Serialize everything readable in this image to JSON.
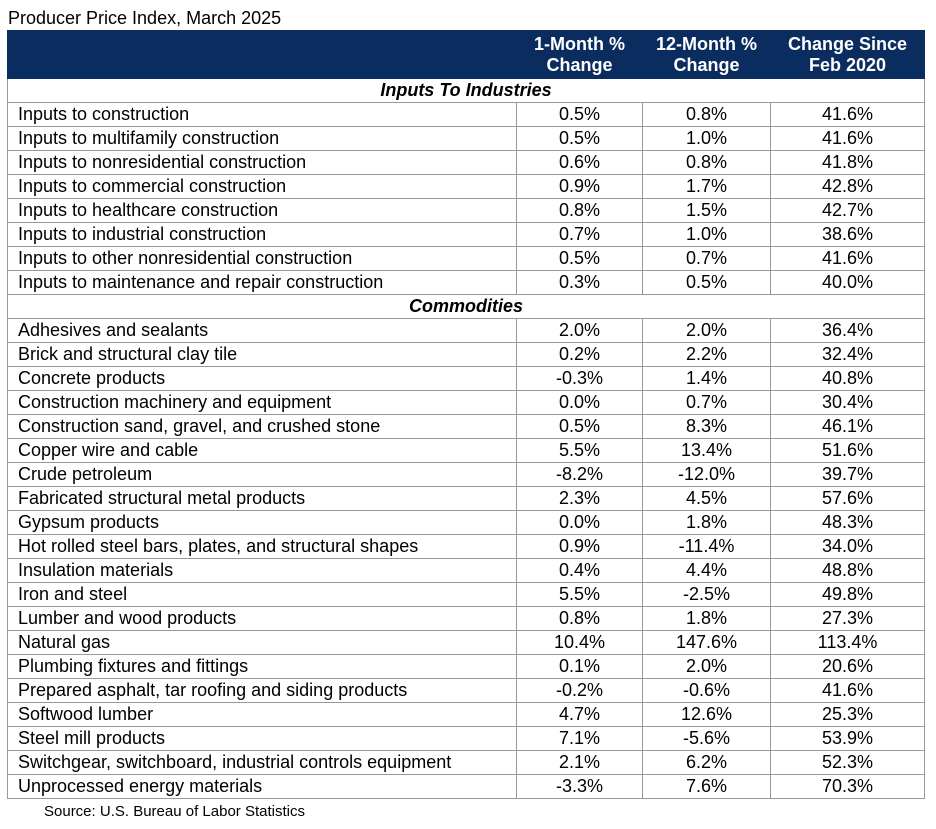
{
  "title": "Producer Price Index, March 2025",
  "columns": [
    "",
    "1-Month % Change",
    "12-Month % Change",
    "Change Since Feb 2020"
  ],
  "sections": [
    {
      "title": "Inputs To Industries",
      "rows": [
        [
          "Inputs to construction",
          "0.5%",
          "0.8%",
          "41.6%"
        ],
        [
          "Inputs to multifamily construction",
          "0.5%",
          "1.0%",
          "41.6%"
        ],
        [
          "Inputs to nonresidential construction",
          "0.6%",
          "0.8%",
          "41.8%"
        ],
        [
          "Inputs to commercial construction",
          "0.9%",
          "1.7%",
          "42.8%"
        ],
        [
          "Inputs to healthcare construction",
          "0.8%",
          "1.5%",
          "42.7%"
        ],
        [
          "Inputs to industrial construction",
          "0.7%",
          "1.0%",
          "38.6%"
        ],
        [
          "Inputs to other nonresidential construction",
          "0.5%",
          "0.7%",
          "41.6%"
        ],
        [
          "Inputs to maintenance and repair construction",
          "0.3%",
          "0.5%",
          "40.0%"
        ]
      ]
    },
    {
      "title": "Commodities",
      "rows": [
        [
          "Adhesives and sealants",
          "2.0%",
          "2.0%",
          "36.4%"
        ],
        [
          "Brick and structural clay tile",
          "0.2%",
          "2.2%",
          "32.4%"
        ],
        [
          "Concrete products",
          "-0.3%",
          "1.4%",
          "40.8%"
        ],
        [
          "Construction machinery and equipment",
          "0.0%",
          "0.7%",
          "30.4%"
        ],
        [
          "Construction sand, gravel, and crushed stone",
          "0.5%",
          "8.3%",
          "46.1%"
        ],
        [
          "Copper wire and cable",
          "5.5%",
          "13.4%",
          "51.6%"
        ],
        [
          "Crude petroleum",
          "-8.2%",
          "-12.0%",
          "39.7%"
        ],
        [
          "Fabricated structural metal products",
          "2.3%",
          "4.5%",
          "57.6%"
        ],
        [
          "Gypsum products",
          "0.0%",
          "1.8%",
          "48.3%"
        ],
        [
          "Hot rolled steel bars, plates, and structural shapes",
          "0.9%",
          "-11.4%",
          "34.0%"
        ],
        [
          "Insulation materials",
          "0.4%",
          "4.4%",
          "48.8%"
        ],
        [
          "Iron and steel",
          "5.5%",
          "-2.5%",
          "49.8%"
        ],
        [
          "Lumber and wood products",
          "0.8%",
          "1.8%",
          "27.3%"
        ],
        [
          "Natural gas",
          "10.4%",
          "147.6%",
          "113.4%"
        ],
        [
          "Plumbing fixtures and fittings",
          "0.1%",
          "2.0%",
          "20.6%"
        ],
        [
          "Prepared asphalt, tar roofing and siding products",
          "-0.2%",
          "-0.6%",
          "41.6%"
        ],
        [
          "Softwood lumber",
          "4.7%",
          "12.6%",
          "25.3%"
        ],
        [
          "Steel mill products",
          "7.1%",
          "-5.6%",
          "53.9%"
        ],
        [
          "Switchgear, switchboard, industrial controls equipment",
          "2.1%",
          "6.2%",
          "52.3%"
        ],
        [
          "Unprocessed energy materials",
          "-3.3%",
          "7.6%",
          "70.3%"
        ]
      ]
    }
  ],
  "source": "Source: U.S. Bureau of Labor Statistics"
}
